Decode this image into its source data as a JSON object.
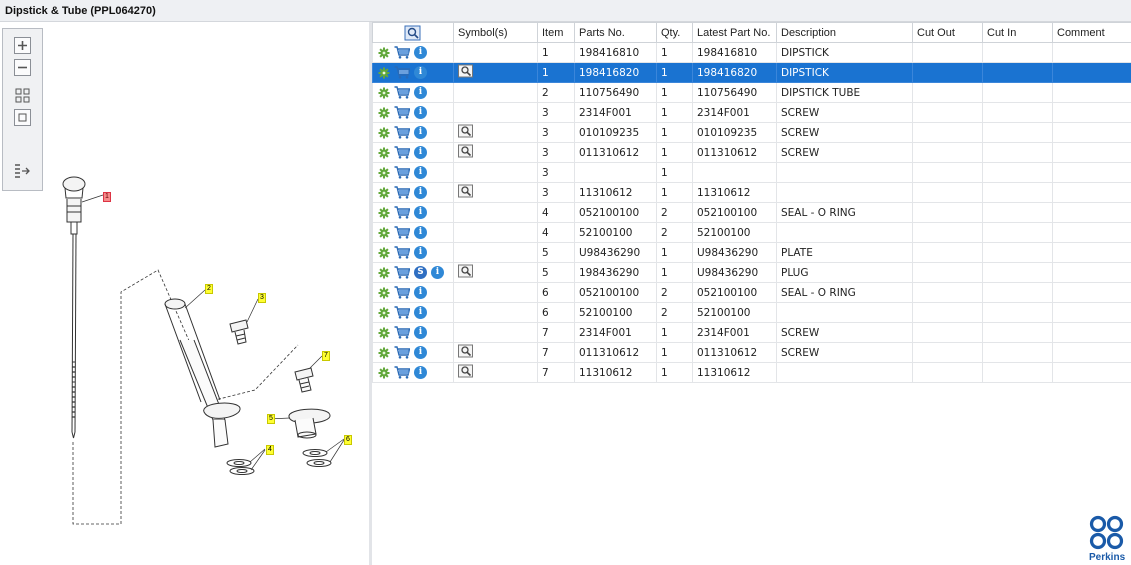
{
  "window": {
    "title": "Dipstick & Tube (PPL064270)"
  },
  "toolbar": {
    "zoom_in": "zoom-in-icon",
    "zoom_out": "zoom-out-icon",
    "fit": "fit-all-icon",
    "actual": "actual-size-icon",
    "export": "export-list-icon"
  },
  "diagram": {
    "callouts": [
      "1",
      "2",
      "3",
      "4",
      "5",
      "6",
      "7"
    ]
  },
  "table": {
    "columns": [
      "",
      "Symbol(s)",
      "Item",
      "Parts No.",
      "Qty.",
      "Latest Part No.",
      "Description",
      "Cut Out",
      "Cut In",
      "Comment"
    ],
    "selected_row": 1,
    "rows": [
      {
        "s": false,
        "sym": false,
        "item": "1",
        "part": "198416810",
        "qty": "1",
        "latest": "198416810",
        "desc": "DIPSTICK"
      },
      {
        "s": false,
        "sym": true,
        "item": "1",
        "part": "198416820",
        "qty": "1",
        "latest": "198416820",
        "desc": "DIPSTICK"
      },
      {
        "s": false,
        "sym": false,
        "item": "2",
        "part": "110756490",
        "qty": "1",
        "latest": "110756490",
        "desc": "DIPSTICK TUBE"
      },
      {
        "s": false,
        "sym": false,
        "item": "3",
        "part": "2314F001",
        "qty": "1",
        "latest": "2314F001",
        "desc": "SCREW"
      },
      {
        "s": false,
        "sym": true,
        "item": "3",
        "part": "010109235",
        "qty": "1",
        "latest": "010109235",
        "desc": "SCREW"
      },
      {
        "s": false,
        "sym": true,
        "item": "3",
        "part": "011310612",
        "qty": "1",
        "latest": "011310612",
        "desc": "SCREW"
      },
      {
        "s": false,
        "sym": false,
        "item": "3",
        "part": "",
        "qty": "1",
        "latest": "",
        "desc": ""
      },
      {
        "s": false,
        "sym": true,
        "item": "3",
        "part": "11310612",
        "qty": "1",
        "latest": "11310612",
        "desc": ""
      },
      {
        "s": false,
        "sym": false,
        "item": "4",
        "part": "052100100",
        "qty": "2",
        "latest": "052100100",
        "desc": "SEAL - O RING"
      },
      {
        "s": false,
        "sym": false,
        "item": "4",
        "part": "52100100",
        "qty": "2",
        "latest": "52100100",
        "desc": ""
      },
      {
        "s": false,
        "sym": false,
        "item": "5",
        "part": "U98436290",
        "qty": "1",
        "latest": "U98436290",
        "desc": "PLATE"
      },
      {
        "s": true,
        "sym": true,
        "item": "5",
        "part": "198436290",
        "qty": "1",
        "latest": "U98436290",
        "desc": "PLUG"
      },
      {
        "s": false,
        "sym": false,
        "item": "6",
        "part": "052100100",
        "qty": "2",
        "latest": "052100100",
        "desc": "SEAL - O RING"
      },
      {
        "s": false,
        "sym": false,
        "item": "6",
        "part": "52100100",
        "qty": "2",
        "latest": "52100100",
        "desc": ""
      },
      {
        "s": false,
        "sym": false,
        "item": "7",
        "part": "2314F001",
        "qty": "1",
        "latest": "2314F001",
        "desc": "SCREW"
      },
      {
        "s": false,
        "sym": true,
        "item": "7",
        "part": "011310612",
        "qty": "1",
        "latest": "011310612",
        "desc": "SCREW"
      },
      {
        "s": false,
        "sym": true,
        "item": "7",
        "part": "11310612",
        "qty": "1",
        "latest": "11310612",
        "desc": ""
      }
    ],
    "info_glyph": "i",
    "s_glyph": "S"
  },
  "brand": {
    "name": "Perkins"
  }
}
